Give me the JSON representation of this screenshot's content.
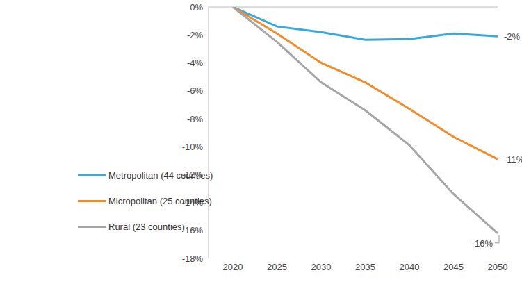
{
  "chart_data": {
    "type": "line",
    "x": [
      2020,
      2025,
      2030,
      2035,
      2040,
      2045,
      2050
    ],
    "series": [
      {
        "name": "Metropolitan (44 counties)",
        "color": "#35a9e1",
        "values": [
          0,
          -1.4,
          -1.8,
          -2.35,
          -2.3,
          -1.9,
          -2.1
        ]
      },
      {
        "name": "Micropolitan (25 counties)",
        "color": "#f28c28",
        "values": [
          0,
          -1.9,
          -4.0,
          -5.4,
          -7.3,
          -9.3,
          -10.9
        ]
      },
      {
        "name": "Rural (23 counties)",
        "color": "#a5a5a5",
        "values": [
          0,
          -2.5,
          -5.4,
          -7.4,
          -9.9,
          -13.4,
          -16.2
        ]
      }
    ],
    "ylim": [
      -18,
      0
    ],
    "yticks": [
      {
        "value": -18,
        "label": "-18%"
      },
      {
        "value": -16,
        "label": "-16%"
      },
      {
        "value": -14,
        "label": "-14%"
      },
      {
        "value": -12,
        "label": "-12%"
      },
      {
        "value": -10,
        "label": "-10%"
      },
      {
        "value": -8,
        "label": "-8%"
      },
      {
        "value": -6,
        "label": "-6%"
      },
      {
        "value": -4,
        "label": "-4%"
      },
      {
        "value": -2,
        "label": "-2%"
      },
      {
        "value": 0,
        "label": "0%"
      }
    ],
    "annotations": [
      {
        "series": "Metropolitan (44 counties)",
        "text": "-2%"
      },
      {
        "series": "Micropolitan (25 counties)",
        "text": "-11%"
      },
      {
        "series": "Rural (23 counties)",
        "text": "-16%"
      }
    ],
    "grid": false,
    "legend": "lower left"
  }
}
